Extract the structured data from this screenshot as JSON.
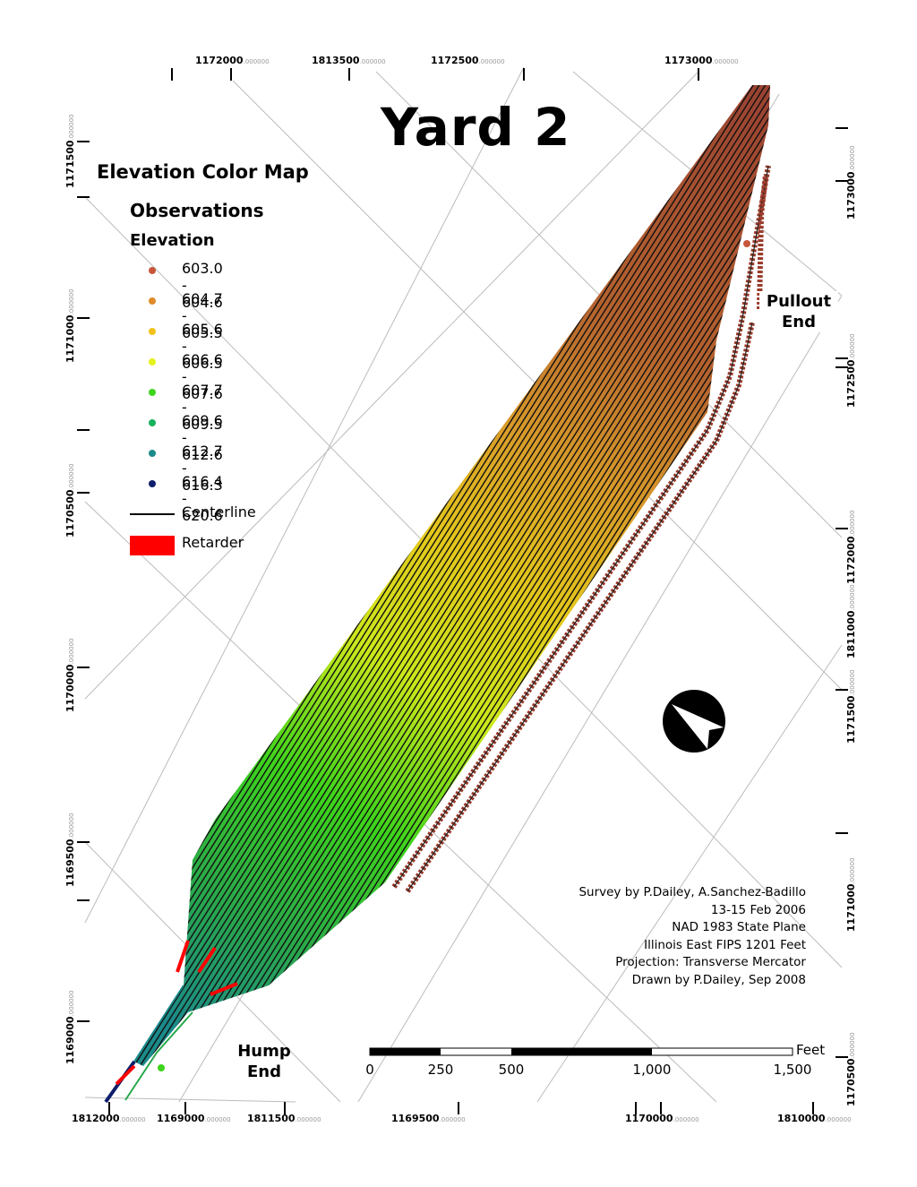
{
  "title": "Yard 2",
  "legend": {
    "heading": "Elevation Color Map",
    "group": "Observations",
    "field": "Elevation",
    "classes": [
      {
        "label": "603.0 - 604.6",
        "color": "#c8553a"
      },
      {
        "label": "604.7 - 605.5",
        "color": "#e08a2a"
      },
      {
        "label": "605.6 - 606.5",
        "color": "#f2c21b"
      },
      {
        "label": "606.6 - 607.6",
        "color": "#e4f21b"
      },
      {
        "label": "607.7 - 609.5",
        "color": "#3ed41c"
      },
      {
        "label": "609.6 - 612.6",
        "color": "#17b25d"
      },
      {
        "label": "612.7 - 616.3",
        "color": "#1b8a8a"
      },
      {
        "label": "616.4 - 620.6",
        "color": "#0d1f6b"
      }
    ],
    "centerline_label": "Centerline",
    "retarder_label": "Retarder",
    "retarder_color": "#ff0000"
  },
  "credits": [
    "Survey by P.Dailey, A.Sanchez-Badillo",
    "13-15 Feb 2006",
    "NAD 1983 State Plane",
    "Illinois East FIPS 1201 Feet",
    "Projection: Transverse Mercator",
    "Drawn by P.Dailey, Sep 2008"
  ],
  "pullout_end": [
    "Pullout",
    "End"
  ],
  "hump_end": [
    "Hump",
    "End"
  ],
  "scale_bar": {
    "unit": "Feet",
    "labels": [
      "0",
      "250",
      "500",
      "1,000",
      "1,500"
    ]
  },
  "grid_labels": {
    "top": [
      {
        "value": "1172000",
        "dec": ".000000"
      },
      {
        "value": "1813500",
        "dec": ".000000"
      },
      {
        "value": "1172500",
        "dec": ".000000"
      },
      {
        "value": "1173000",
        "dec": ".000000"
      }
    ],
    "bottom": [
      {
        "value": "1812000",
        "dec": ".000000"
      },
      {
        "value": "1169000",
        "dec": ".000000"
      },
      {
        "value": "1811500",
        "dec": ".000000"
      },
      {
        "value": "1169500",
        "dec": ".000000"
      },
      {
        "value": "1170000",
        "dec": ".000000"
      },
      {
        "value": "1810000",
        "dec": ".000000"
      }
    ],
    "left": [
      {
        "value": "1171500",
        "dec": ".000000"
      },
      {
        "value": "1171000",
        "dec": ".000000"
      },
      {
        "value": "1170500",
        "dec": ".000000"
      },
      {
        "value": "1170000",
        "dec": ".000000"
      },
      {
        "value": "1169500",
        "dec": ".000000"
      },
      {
        "value": "1169000",
        "dec": ".000000"
      }
    ],
    "right": [
      {
        "value": "1173000",
        "dec": ".000000"
      },
      {
        "value": "1172500",
        "dec": ".000000"
      },
      {
        "value": "1172000",
        "dec": ".000000"
      },
      {
        "value": "1811000",
        "dec": ".000000"
      },
      {
        "value": "1171500",
        "dec": ".000000"
      },
      {
        "value": "1171000",
        "dec": ".000000"
      },
      {
        "value": "1170500",
        "dec": ".000000"
      }
    ]
  },
  "north_arrow_icon": "north-arrow-icon"
}
